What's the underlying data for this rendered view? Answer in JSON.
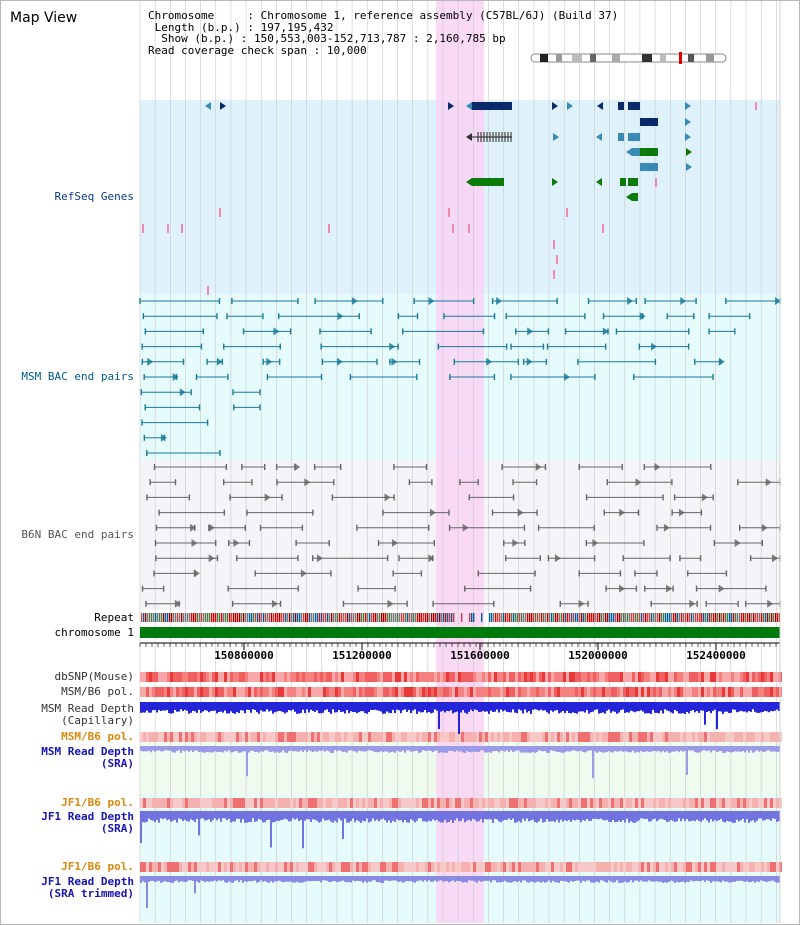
{
  "view": {
    "title": "Map View",
    "chromosome_label": "Chromosome",
    "chromosome_value": "Chromosome 1, reference assembly (C57BL/6J) (Build 37)",
    "length_label": "Length (b.p.)",
    "length_value": "197,195,432",
    "show_label": "Show (b.p.)",
    "show_value": "150,553,003-152,713,787 : 2,160,785 bp",
    "coverage_label": "Read coverage check span",
    "coverage_value": "10,000"
  },
  "tracks": {
    "refseq": "RefSeq Genes",
    "msm_bac": "MSM BAC end pairs",
    "b6n_bac": "B6N BAC end pairs",
    "repeat": "Repeat",
    "chromosome": "chromosome 1",
    "dbsnp": "dbSNP(Mouse)",
    "msm_b6_pol": "MSM/B6 pol.",
    "msm_depth_cap_1": "MSM Read Depth",
    "msm_depth_cap_2": "(Capillary)",
    "msm_b6_pol2": "MSM/B6 pol.",
    "msm_depth_sra_1": "MSM Read Depth",
    "msm_depth_sra_2": "(SRA)",
    "jf1_b6_pol": "JF1/B6 pol.",
    "jf1_depth_sra_1": "JF1 Read Depth",
    "jf1_depth_sra_2": "(SRA)",
    "jf1_b6_pol2": "JF1/B6 pol.",
    "jf1_depth_trim_1": "JF1 Read Depth",
    "jf1_depth_trim_2": "(SRA trimmed)"
  },
  "axis": {
    "ticks": [
      "150800000",
      "151200000",
      "151600000",
      "152000000",
      "152400000"
    ]
  },
  "colors": {
    "highlight": "#f9d4f3",
    "refseq_bg": "#dff2fb",
    "msm_bg": "#e6fbfb",
    "b6n_bg": "#f5f5f9",
    "chromosome": "#007a0b",
    "msm_label": "#005c8a",
    "pol_label": "#d9880e",
    "depth_label": "#1515b3"
  }
}
